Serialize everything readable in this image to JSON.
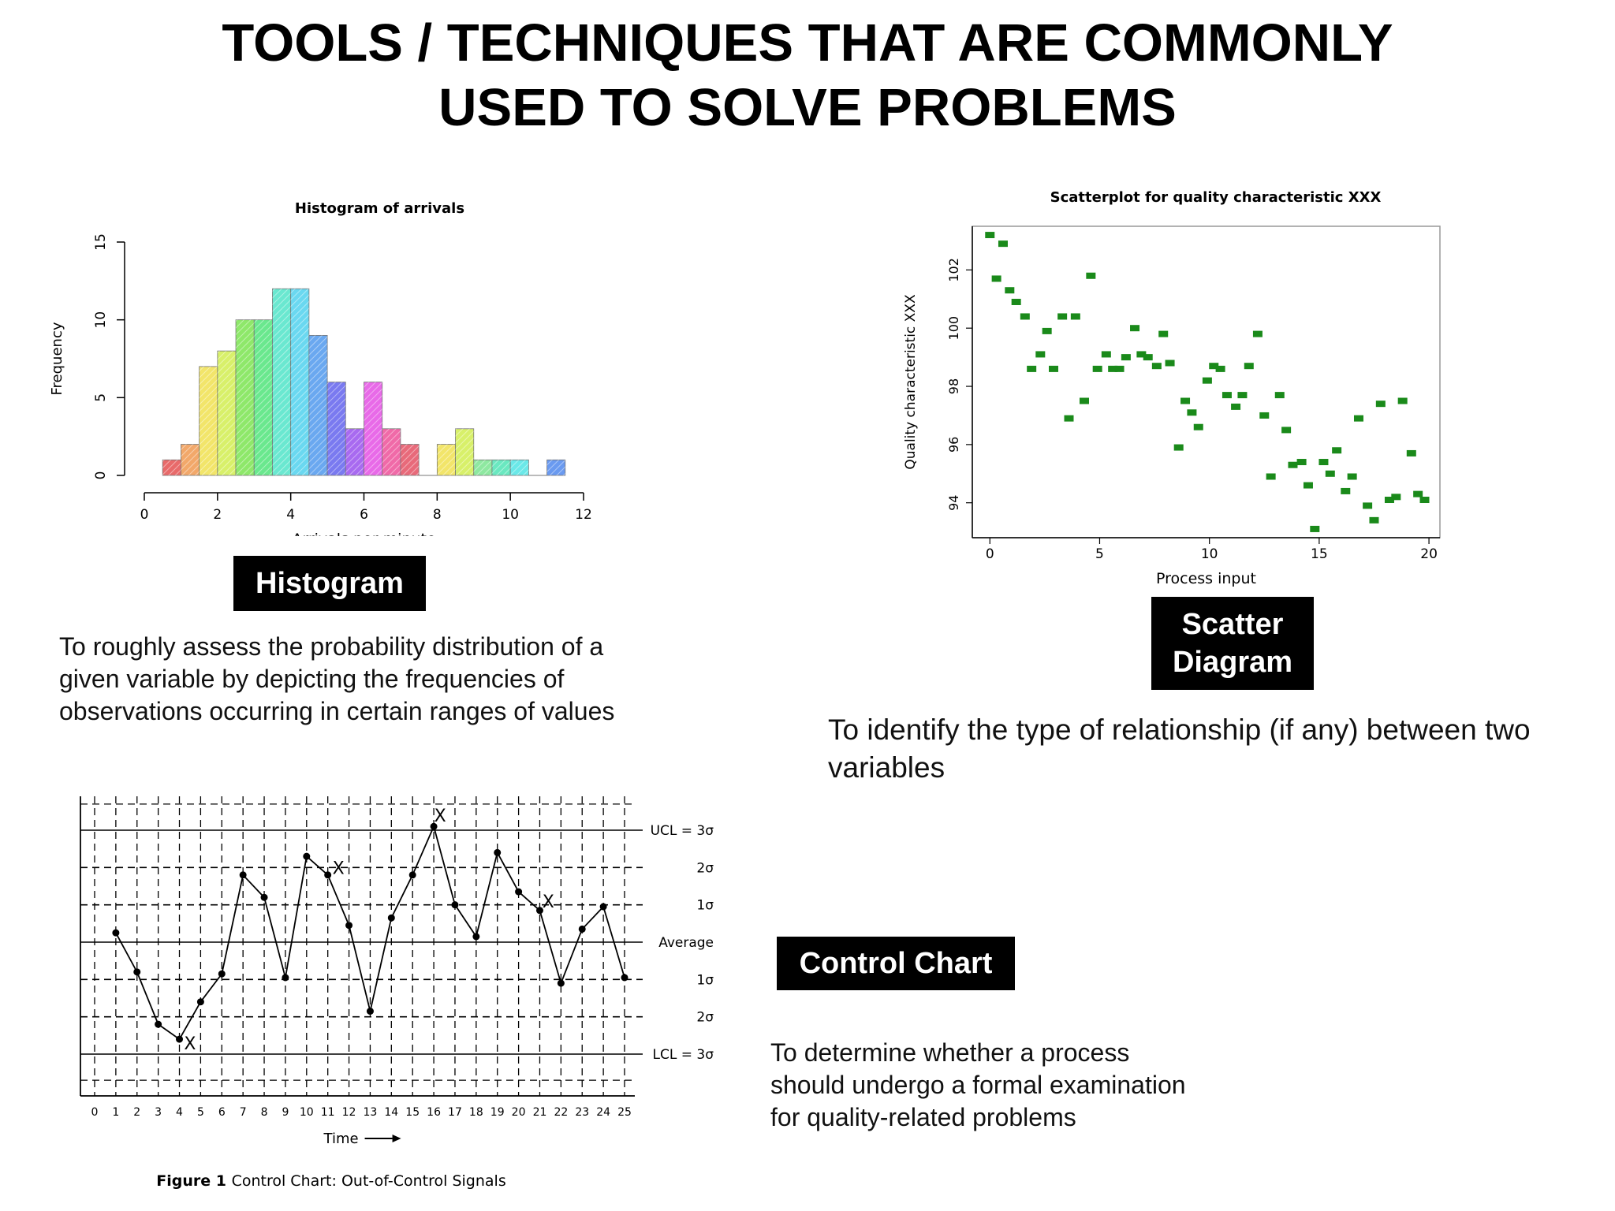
{
  "page": {
    "title_line1": "TOOLS / TECHNIQUES THAT ARE COMMONLY",
    "title_line2": "USED TO SOLVE PROBLEMS"
  },
  "sections": {
    "histogram": {
      "label": "Histogram",
      "description_lines": [
        "To roughly assess the probability distribution of a",
        "given variable by depicting the frequencies of",
        "observations occurring in certain ranges of values"
      ]
    },
    "scatter": {
      "label_lines": [
        "Scatter",
        "Diagram"
      ],
      "description_lines": [
        "To identify the type of relationship (if any) between two",
        "variables"
      ]
    },
    "control": {
      "label": "Control Chart",
      "description_lines": [
        "To determine whether a process",
        "should undergo a formal examination",
        "for quality-related problems"
      ]
    }
  },
  "chart_data": [
    {
      "id": "histogram",
      "type": "bar",
      "title": "Histogram of arrivals",
      "xlabel": "Arrivals per minute",
      "ylabel": "Frequency",
      "xlim": [
        0,
        12
      ],
      "ylim": [
        0,
        15
      ],
      "xticks": [
        0,
        2,
        4,
        6,
        8,
        10,
        12
      ],
      "yticks": [
        0,
        5,
        10,
        15
      ],
      "bin_width": 0.5,
      "bin_starts": [
        0.5,
        1.0,
        1.5,
        2.0,
        2.5,
        3.0,
        3.5,
        4.0,
        4.5,
        5.0,
        5.5,
        6.0,
        6.5,
        7.0,
        7.5,
        8.0,
        8.5,
        9.0,
        9.5,
        10.0,
        10.5,
        11.0
      ],
      "values": [
        1,
        2,
        7,
        8,
        10,
        10,
        12,
        12,
        9,
        6,
        3,
        6,
        3,
        2,
        0,
        2,
        3,
        1,
        1,
        1,
        0,
        1
      ],
      "colors": [
        "#e86a6a",
        "#f2a86a",
        "#f2e56a",
        "#d8f06a",
        "#8ee86a",
        "#6ae88e",
        "#6ae8d0",
        "#6ad8f0",
        "#6aa8f0",
        "#7a7af0",
        "#a86af0",
        "#e86ae8",
        "#f06aa8",
        "#e86a7a",
        "#ffffff",
        "#f2e56a",
        "#d8f06a",
        "#8ee8a0",
        "#6ae8c0",
        "#6ae8e8",
        "#ffffff",
        "#6a9af0"
      ]
    },
    {
      "id": "scatter",
      "type": "scatter",
      "title": "Scatterplot for quality characteristic XXX",
      "xlabel": "Process input",
      "ylabel": "Quality characteristic XXX",
      "xlim": [
        -0.8,
        20.5
      ],
      "ylim": [
        92.8,
        103.5
      ],
      "xticks": [
        0,
        5,
        10,
        15,
        20
      ],
      "yticks": [
        94,
        96,
        98,
        100,
        102
      ],
      "marker_color": "#1a8a1a",
      "points": [
        [
          0.0,
          103.2
        ],
        [
          0.6,
          102.9
        ],
        [
          0.3,
          101.7
        ],
        [
          0.9,
          101.3
        ],
        [
          1.2,
          100.9
        ],
        [
          1.6,
          100.4
        ],
        [
          1.9,
          98.6
        ],
        [
          2.3,
          99.1
        ],
        [
          2.6,
          99.9
        ],
        [
          2.9,
          98.6
        ],
        [
          3.3,
          100.4
        ],
        [
          3.6,
          96.9
        ],
        [
          3.9,
          100.4
        ],
        [
          4.3,
          97.5
        ],
        [
          4.6,
          101.8
        ],
        [
          4.9,
          98.6
        ],
        [
          5.3,
          99.1
        ],
        [
          5.6,
          98.6
        ],
        [
          5.9,
          98.6
        ],
        [
          6.2,
          99.0
        ],
        [
          6.6,
          100.0
        ],
        [
          6.9,
          99.1
        ],
        [
          7.2,
          99.0
        ],
        [
          7.6,
          98.7
        ],
        [
          7.9,
          99.8
        ],
        [
          8.2,
          98.8
        ],
        [
          8.6,
          95.9
        ],
        [
          8.9,
          97.5
        ],
        [
          9.2,
          97.1
        ],
        [
          9.5,
          96.6
        ],
        [
          9.9,
          98.2
        ],
        [
          10.2,
          98.7
        ],
        [
          10.5,
          98.6
        ],
        [
          10.8,
          97.7
        ],
        [
          11.2,
          97.3
        ],
        [
          11.5,
          97.7
        ],
        [
          11.8,
          98.7
        ],
        [
          12.2,
          99.8
        ],
        [
          12.5,
          97.0
        ],
        [
          12.8,
          94.9
        ],
        [
          13.2,
          97.7
        ],
        [
          13.5,
          96.5
        ],
        [
          13.8,
          95.3
        ],
        [
          14.2,
          95.4
        ],
        [
          14.5,
          94.6
        ],
        [
          14.8,
          93.1
        ],
        [
          15.2,
          95.4
        ],
        [
          15.5,
          95.0
        ],
        [
          15.8,
          95.8
        ],
        [
          16.2,
          94.4
        ],
        [
          16.5,
          94.9
        ],
        [
          16.8,
          96.9
        ],
        [
          17.2,
          93.9
        ],
        [
          17.5,
          93.4
        ],
        [
          17.8,
          97.4
        ],
        [
          18.2,
          94.1
        ],
        [
          18.5,
          94.2
        ],
        [
          18.8,
          97.5
        ],
        [
          19.2,
          95.7
        ],
        [
          19.5,
          94.3
        ],
        [
          19.8,
          94.1
        ]
      ]
    },
    {
      "id": "control",
      "type": "line",
      "title": "",
      "caption_bold": "Figure 1",
      "caption_text": "Control Chart: Out-of-Control Signals",
      "xlabel": "Time",
      "xlim": [
        0,
        25
      ],
      "xticks": [
        0,
        1,
        2,
        3,
        4,
        5,
        6,
        7,
        8,
        9,
        10,
        11,
        12,
        13,
        14,
        15,
        16,
        17,
        18,
        19,
        20,
        21,
        22,
        23,
        24,
        25
      ],
      "ylim": [
        -4,
        4
      ],
      "levels": [
        {
          "value": 3,
          "label": "UCL = 3σ",
          "style": "solid"
        },
        {
          "value": 2,
          "label": "2σ",
          "style": "dashed"
        },
        {
          "value": 1,
          "label": "1σ",
          "style": "dashed"
        },
        {
          "value": 0,
          "label": "Average",
          "style": "solid"
        },
        {
          "value": -1,
          "label": "1σ",
          "style": "dashed"
        },
        {
          "value": -2,
          "label": "2σ",
          "style": "dashed"
        },
        {
          "value": -3,
          "label": "LCL = 3σ",
          "style": "solid"
        }
      ],
      "x": [
        1,
        2,
        3,
        4,
        5,
        6,
        7,
        8,
        9,
        10,
        11,
        12,
        13,
        14,
        15,
        16,
        17,
        18,
        19,
        20,
        21,
        22,
        23,
        24,
        25
      ],
      "values": [
        0.25,
        -0.8,
        -2.2,
        -2.6,
        -1.6,
        -0.85,
        1.8,
        1.2,
        -0.95,
        2.3,
        1.8,
        0.45,
        -1.85,
        0.65,
        1.8,
        3.1,
        1.0,
        0.15,
        2.4,
        1.35,
        0.85,
        -1.1,
        0.35,
        0.95,
        -0.95
      ],
      "signal_marks": [
        {
          "x": 4.5,
          "y": -2.7,
          "label": "X"
        },
        {
          "x": 11.5,
          "y": 2.0,
          "label": "X"
        },
        {
          "x": 16.3,
          "y": 3.4,
          "label": "X"
        },
        {
          "x": 21.4,
          "y": 1.1,
          "label": "X"
        }
      ]
    }
  ]
}
